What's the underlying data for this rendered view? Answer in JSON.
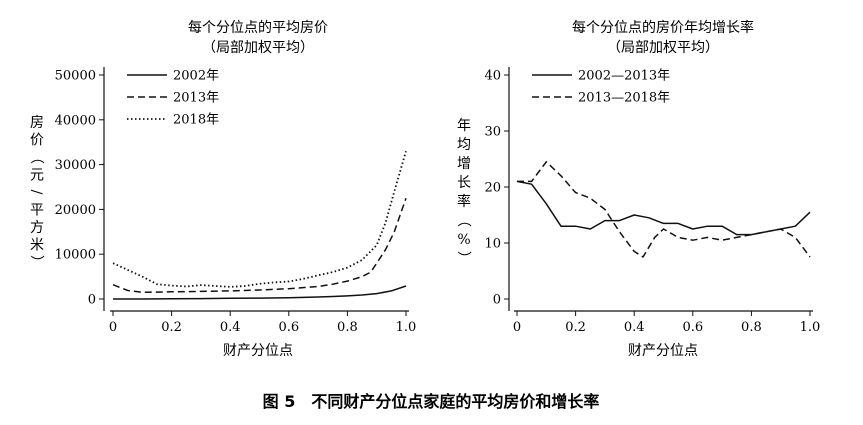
{
  "chart_data": [
    {
      "type": "line",
      "title": "每个分位点的平均房价",
      "subtitle": "（局部加权平均）",
      "xlabel": "财产分位点",
      "ylabel": "房价（元/平方米）",
      "xlim": [
        0,
        1
      ],
      "ylim": [
        0,
        50000
      ],
      "xticks": [
        "0",
        "0.2",
        "0.4",
        "0.6",
        "0.8",
        "1.0"
      ],
      "yticks": [
        "0",
        "10000",
        "20000",
        "30000",
        "40000",
        "50000"
      ],
      "legend_position": "top-left",
      "series": [
        {
          "name": "2002年",
          "style": "solid",
          "x": [
            0,
            0.1,
            0.2,
            0.3,
            0.4,
            0.5,
            0.6,
            0.7,
            0.75,
            0.8,
            0.85,
            0.9,
            0.95,
            1.0
          ],
          "y": [
            0,
            0,
            50,
            100,
            150,
            200,
            300,
            450,
            550,
            700,
            900,
            1200,
            1800,
            2900
          ]
        },
        {
          "name": "2013年",
          "style": "dashed",
          "x": [
            0,
            0.05,
            0.1,
            0.2,
            0.3,
            0.4,
            0.5,
            0.6,
            0.7,
            0.75,
            0.8,
            0.85,
            0.88,
            0.9,
            0.93,
            0.96,
            1.0
          ],
          "y": [
            3200,
            1900,
            1500,
            1600,
            1700,
            1800,
            2000,
            2300,
            2800,
            3300,
            4000,
            5000,
            6000,
            8000,
            11000,
            15000,
            22500
          ]
        },
        {
          "name": "2018年",
          "style": "dotted",
          "x": [
            0,
            0.05,
            0.1,
            0.15,
            0.2,
            0.25,
            0.3,
            0.35,
            0.4,
            0.45,
            0.5,
            0.55,
            0.6,
            0.65,
            0.7,
            0.75,
            0.8,
            0.85,
            0.9,
            0.93,
            0.96,
            1.0
          ],
          "y": [
            8000,
            6500,
            5000,
            3300,
            3000,
            2800,
            3100,
            2900,
            2700,
            2900,
            3400,
            3700,
            3900,
            4500,
            5300,
            6000,
            7000,
            8700,
            12000,
            17000,
            24000,
            33000
          ]
        }
      ]
    },
    {
      "type": "line",
      "title": "每个分位点的房价年均增长率",
      "subtitle": "（局部加权平均）",
      "xlabel": "财产分位点",
      "ylabel": "年均增长率（%）",
      "xlim": [
        0,
        1
      ],
      "ylim": [
        0,
        40
      ],
      "xticks": [
        "0",
        "0.2",
        "0.4",
        "0.6",
        "0.8",
        "1.0"
      ],
      "yticks": [
        "0",
        "10",
        "20",
        "30",
        "40"
      ],
      "legend_position": "top-left",
      "series": [
        {
          "name": "2002—2013年",
          "style": "solid",
          "x": [
            0,
            0.05,
            0.1,
            0.15,
            0.2,
            0.25,
            0.3,
            0.35,
            0.4,
            0.45,
            0.5,
            0.55,
            0.6,
            0.65,
            0.7,
            0.75,
            0.8,
            0.85,
            0.9,
            0.95,
            1.0
          ],
          "y": [
            21,
            20.5,
            17,
            13,
            13,
            12.5,
            14,
            14,
            15,
            14.5,
            13.5,
            13.5,
            12.5,
            13,
            13,
            11.5,
            11.5,
            12,
            12.5,
            13,
            15.5
          ]
        },
        {
          "name": "2013—2018年",
          "style": "dashed",
          "x": [
            0,
            0.05,
            0.1,
            0.15,
            0.2,
            0.25,
            0.3,
            0.35,
            0.4,
            0.43,
            0.47,
            0.5,
            0.55,
            0.6,
            0.65,
            0.7,
            0.75,
            0.8,
            0.85,
            0.9,
            0.95,
            1.0
          ],
          "y": [
            21,
            21,
            24.5,
            22,
            19,
            18,
            16,
            12,
            8.5,
            7.5,
            11,
            12.5,
            11,
            10.5,
            11,
            10.5,
            11,
            11.5,
            12,
            12.5,
            11,
            7.5
          ]
        }
      ]
    }
  ],
  "caption": "图 5　不同财产分位点家庭的平均房价和增长率"
}
